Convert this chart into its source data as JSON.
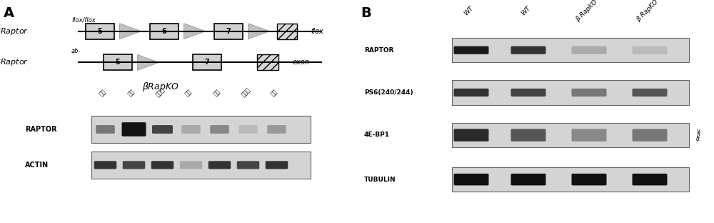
{
  "bg_color": "#ffffff",
  "panel_A_label": "A",
  "panel_B_label": "B",
  "line1_label": "βRaptor",
  "line1_sup": "flox/flox",
  "line2_label": "βRaptor",
  "line2_sup": "ab-",
  "flox_label": "flox",
  "exon_label": "exon",
  "brapko_label": "βRapKO",
  "boxes_line1": [
    "5",
    "6",
    "7"
  ],
  "boxes_line2": [
    "5",
    "7"
  ],
  "wb_labels_A": [
    "RAPTOR",
    "ACTIN"
  ],
  "col_labels_A": [
    "心肌",
    "肝脏",
    "骨骼肌",
    "肾脏",
    "脂肪",
    "下丘脏",
    "胰岛"
  ],
  "col_labels_B": [
    "WT",
    "WT",
    "β RapKO",
    "β RapKO"
  ],
  "wb_labels_B": [
    "RAPTOR",
    "PS6(240/244)",
    "4E-BP1",
    "TUBULIN"
  ],
  "band_annotations": [
    "γ",
    "β",
    "α"
  ],
  "box_facecolor": "#d0d0d0",
  "box_edgecolor": "#000000",
  "arrow_color": "#c0c0c0",
  "line_color": "#000000",
  "gel_bg": "#c8c8c8",
  "band_dark": "#1a1a1a",
  "band_med": "#555555",
  "band_light": "#888888"
}
